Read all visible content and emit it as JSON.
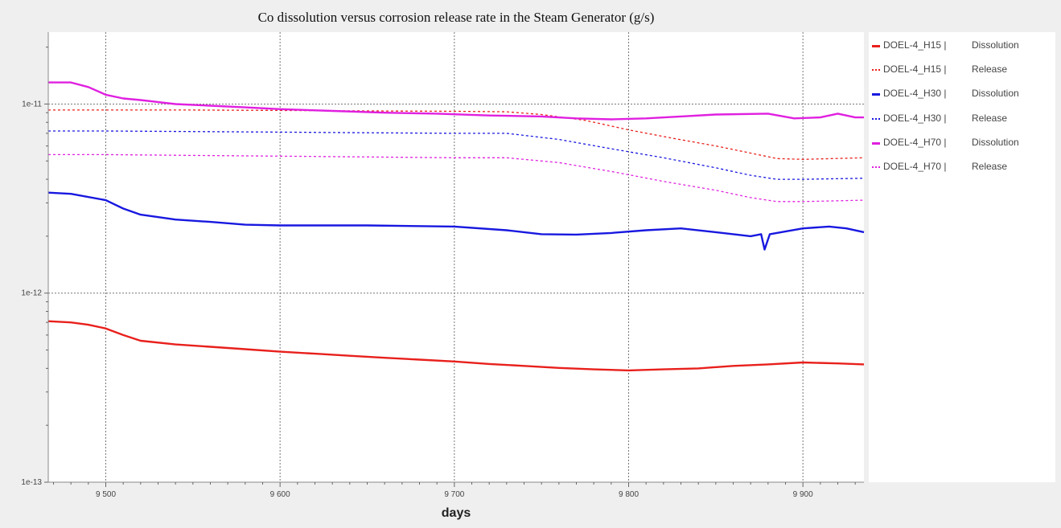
{
  "chart_data": {
    "type": "line",
    "title": "Co dissolution versus corrosion release rate in the Steam Generator (g/s)",
    "xlabel": "days",
    "ylabel": "",
    "xlim": [
      9467,
      9935
    ],
    "ylim": [
      1e-13,
      2.4e-11
    ],
    "y_scale": "log",
    "grid": true,
    "legend_position": "right",
    "x_ticks": [
      9500,
      9600,
      9700,
      9800,
      9900
    ],
    "x_tick_labels": [
      "9 500",
      "9 600",
      "9 700",
      "9 800",
      "9 900"
    ],
    "y_ticks": [
      1e-13,
      1e-12,
      1e-11
    ],
    "y_tick_labels": [
      "1e-13",
      "1e-12",
      "1e-11"
    ],
    "series": [
      {
        "name": "DOEL-4_H15 | Dissolution",
        "color": "#e8201c",
        "style": "solid",
        "points": [
          [
            9467,
            7.1e-13
          ],
          [
            9480,
            7e-13
          ],
          [
            9490,
            6.8e-13
          ],
          [
            9500,
            6.5e-13
          ],
          [
            9510,
            6e-13
          ],
          [
            9520,
            5.6e-13
          ],
          [
            9540,
            5.35e-13
          ],
          [
            9560,
            5.2e-13
          ],
          [
            9580,
            5.05e-13
          ],
          [
            9600,
            4.9e-13
          ],
          [
            9620,
            4.78e-13
          ],
          [
            9640,
            4.66e-13
          ],
          [
            9660,
            4.55e-13
          ],
          [
            9680,
            4.45e-13
          ],
          [
            9700,
            4.35e-13
          ],
          [
            9720,
            4.22e-13
          ],
          [
            9740,
            4.12e-13
          ],
          [
            9760,
            4.02e-13
          ],
          [
            9780,
            3.95e-13
          ],
          [
            9800,
            3.9e-13
          ],
          [
            9820,
            3.95e-13
          ],
          [
            9840,
            4e-13
          ],
          [
            9860,
            4.12e-13
          ],
          [
            9880,
            4.2e-13
          ],
          [
            9900,
            4.3e-13
          ],
          [
            9920,
            4.25e-13
          ],
          [
            9935,
            4.2e-13
          ]
        ]
      },
      {
        "name": "DOEL-4_H15 | Release",
        "color": "#e8201c",
        "style": "dotted",
        "points": [
          [
            9467,
            9.3e-12
          ],
          [
            9500,
            9.3e-12
          ],
          [
            9550,
            9.3e-12
          ],
          [
            9600,
            9.25e-12
          ],
          [
            9650,
            9.2e-12
          ],
          [
            9700,
            9.15e-12
          ],
          [
            9730,
            9.1e-12
          ],
          [
            9750,
            8.8e-12
          ],
          [
            9775,
            8.2e-12
          ],
          [
            9800,
            7.3e-12
          ],
          [
            9825,
            6.6e-12
          ],
          [
            9850,
            6e-12
          ],
          [
            9870,
            5.5e-12
          ],
          [
            9885,
            5.15e-12
          ],
          [
            9900,
            5.1e-12
          ],
          [
            9935,
            5.2e-12
          ]
        ]
      },
      {
        "name": "DOEL-4_H30 | Dissolution",
        "color": "#1818e0",
        "style": "solid",
        "points": [
          [
            9467,
            3.4e-12
          ],
          [
            9480,
            3.35e-12
          ],
          [
            9500,
            3.1e-12
          ],
          [
            9510,
            2.8e-12
          ],
          [
            9520,
            2.6e-12
          ],
          [
            9540,
            2.45e-12
          ],
          [
            9560,
            2.38e-12
          ],
          [
            9580,
            2.3e-12
          ],
          [
            9600,
            2.28e-12
          ],
          [
            9650,
            2.28e-12
          ],
          [
            9700,
            2.25e-12
          ],
          [
            9730,
            2.15e-12
          ],
          [
            9750,
            2.05e-12
          ],
          [
            9770,
            2.04e-12
          ],
          [
            9790,
            2.08e-12
          ],
          [
            9810,
            2.15e-12
          ],
          [
            9830,
            2.2e-12
          ],
          [
            9850,
            2.1e-12
          ],
          [
            9870,
            2e-12
          ],
          [
            9876,
            2.05e-12
          ],
          [
            9878,
            1.7e-12
          ],
          [
            9881,
            2.05e-12
          ],
          [
            9900,
            2.2e-12
          ],
          [
            9915,
            2.25e-12
          ],
          [
            9925,
            2.2e-12
          ],
          [
            9935,
            2.1e-12
          ]
        ]
      },
      {
        "name": "DOEL-4_H30 | Release",
        "color": "#1818e0",
        "style": "dotted",
        "points": [
          [
            9467,
            7.2e-12
          ],
          [
            9500,
            7.2e-12
          ],
          [
            9550,
            7.15e-12
          ],
          [
            9600,
            7.1e-12
          ],
          [
            9650,
            7.05e-12
          ],
          [
            9700,
            7e-12
          ],
          [
            9730,
            7e-12
          ],
          [
            9760,
            6.5e-12
          ],
          [
            9790,
            5.8e-12
          ],
          [
            9820,
            5.2e-12
          ],
          [
            9850,
            4.6e-12
          ],
          [
            9870,
            4.2e-12
          ],
          [
            9885,
            4e-12
          ],
          [
            9900,
            4e-12
          ],
          [
            9935,
            4.05e-12
          ]
        ]
      },
      {
        "name": "DOEL-4_H70 | Dissolution",
        "color": "#e020e0",
        "style": "solid",
        "points": [
          [
            9467,
            1.3e-11
          ],
          [
            9480,
            1.3e-11
          ],
          [
            9490,
            1.23e-11
          ],
          [
            9500,
            1.12e-11
          ],
          [
            9510,
            1.07e-11
          ],
          [
            9520,
            1.05e-11
          ],
          [
            9540,
            1e-11
          ],
          [
            9560,
            9.8e-12
          ],
          [
            9580,
            9.6e-12
          ],
          [
            9600,
            9.4e-12
          ],
          [
            9630,
            9.2e-12
          ],
          [
            9660,
            9e-12
          ],
          [
            9690,
            8.9e-12
          ],
          [
            9720,
            8.7e-12
          ],
          [
            9750,
            8.6e-12
          ],
          [
            9770,
            8.4e-12
          ],
          [
            9790,
            8.3e-12
          ],
          [
            9810,
            8.4e-12
          ],
          [
            9830,
            8.6e-12
          ],
          [
            9850,
            8.8e-12
          ],
          [
            9880,
            8.9e-12
          ],
          [
            9895,
            8.4e-12
          ],
          [
            9910,
            8.5e-12
          ],
          [
            9920,
            8.9e-12
          ],
          [
            9930,
            8.5e-12
          ],
          [
            9935,
            8.5e-12
          ]
        ]
      },
      {
        "name": "DOEL-4_H70 | Release",
        "color": "#e020e0",
        "style": "dotted",
        "points": [
          [
            9467,
            5.4e-12
          ],
          [
            9500,
            5.4e-12
          ],
          [
            9550,
            5.35e-12
          ],
          [
            9600,
            5.3e-12
          ],
          [
            9650,
            5.25e-12
          ],
          [
            9700,
            5.2e-12
          ],
          [
            9730,
            5.2e-12
          ],
          [
            9760,
            4.9e-12
          ],
          [
            9790,
            4.4e-12
          ],
          [
            9820,
            3.9e-12
          ],
          [
            9850,
            3.5e-12
          ],
          [
            9870,
            3.2e-12
          ],
          [
            9885,
            3.05e-12
          ],
          [
            9900,
            3.05e-12
          ],
          [
            9935,
            3.1e-12
          ]
        ]
      }
    ]
  },
  "legend": [
    {
      "name": "DOEL-4_H15 |",
      "kind": "Dissolution",
      "color": "#e8201c",
      "style": "solid"
    },
    {
      "name": "DOEL-4_H15 |",
      "kind": "Release",
      "color": "#e8201c",
      "style": "dotted"
    },
    {
      "name": "DOEL-4_H30 |",
      "kind": "Dissolution",
      "color": "#1818e0",
      "style": "solid"
    },
    {
      "name": "DOEL-4_H30 |",
      "kind": "Release",
      "color": "#1818e0",
      "style": "dotted"
    },
    {
      "name": "DOEL-4_H70 |",
      "kind": "Dissolution",
      "color": "#e020e0",
      "style": "solid"
    },
    {
      "name": "DOEL-4_H70 |",
      "kind": "Release",
      "color": "#e020e0",
      "style": "dotted"
    }
  ]
}
